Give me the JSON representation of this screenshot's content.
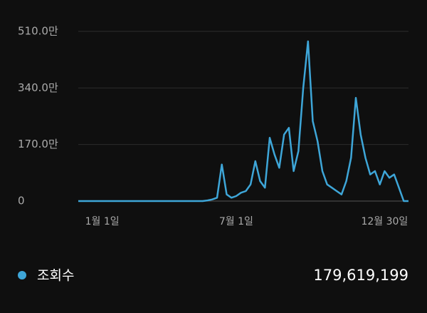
{
  "chart_data": {
    "type": "line",
    "categories": [
      null,
      null,
      null,
      null,
      null,
      "1월 1일",
      null,
      null,
      null,
      null,
      null,
      null,
      null,
      null,
      null,
      null,
      null,
      null,
      null,
      null,
      null,
      null,
      null,
      null,
      null,
      null,
      null,
      null,
      null,
      null,
      null,
      null,
      null,
      "7월 1일",
      null,
      null,
      null,
      null,
      null,
      null,
      null,
      null,
      null,
      null,
      null,
      null,
      null,
      null,
      null,
      null,
      null,
      null,
      null,
      null,
      null,
      null,
      null,
      null,
      null,
      null,
      null,
      null,
      null,
      null,
      "12월 30일",
      null,
      null,
      null,
      null,
      null
    ],
    "series": [
      {
        "name": "조회수",
        "color": "#3ea6d8",
        "values": [
          0,
          0,
          0,
          0,
          0,
          0,
          0,
          0,
          0,
          0,
          0,
          0,
          0,
          0,
          0,
          0,
          0,
          0,
          0,
          0,
          0,
          0,
          0,
          0,
          0,
          0,
          0,
          20000,
          50000,
          100000,
          1100000,
          200000,
          100000,
          150000,
          250000,
          300000,
          500000,
          1200000,
          600000,
          400000,
          1900000,
          1400000,
          1000000,
          2000000,
          2200000,
          900000,
          1500000,
          3400000,
          4800000,
          2400000,
          1800000,
          900000,
          500000,
          400000,
          300000,
          200000,
          600000,
          1300000,
          3100000,
          2000000,
          1300000,
          800000,
          900000,
          500000,
          900000,
          700000,
          800000,
          400000,
          0,
          0
        ]
      }
    ],
    "ylim": [
      0,
      5100000
    ],
    "yticks": [
      0,
      {
        "value": 1700000,
        "label": "170.0만"
      },
      {
        "value": 3400000,
        "label": "340.0만"
      },
      {
        "value": 5100000,
        "label": "510.0만"
      }
    ],
    "grid": true,
    "total": "179,619,199"
  }
}
